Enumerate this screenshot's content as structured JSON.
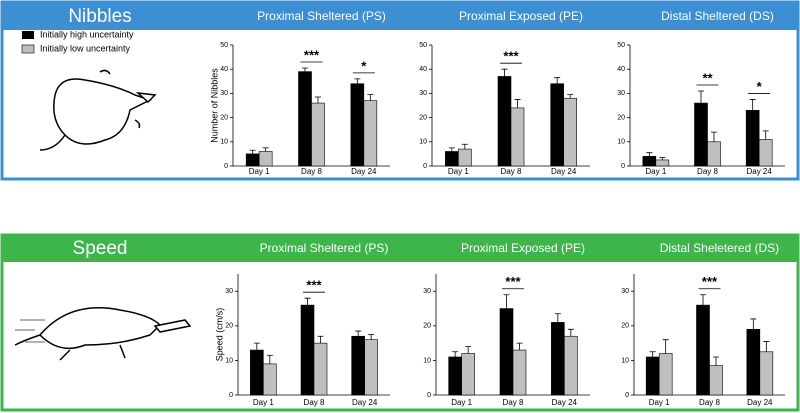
{
  "panels": [
    {
      "title": "Nibbles"
    },
    {
      "title": "Speed"
    }
  ],
  "chart_data": [
    {
      "type": "bar",
      "title": "Proximal Sheltered (PS)",
      "ylabel": "Number of Nibbles",
      "categories": [
        "Day 1",
        "Day 8",
        "Day 24"
      ],
      "series": [
        {
          "name": "Initially high uncertainty",
          "color": "#000000",
          "values": [
            5,
            39,
            34
          ],
          "errors": [
            1.5,
            1.5,
            2
          ]
        },
        {
          "name": "Initially low uncertainty",
          "color": "#bfbfbf",
          "values": [
            6,
            26,
            27
          ],
          "errors": [
            1.5,
            2.5,
            2.5
          ]
        }
      ],
      "ylim": [
        0,
        50
      ],
      "yticks": [
        0,
        10,
        20,
        30,
        40,
        50
      ],
      "annotations": [
        {
          "text": "***",
          "x": "Day 8"
        },
        {
          "text": "*",
          "x": "Day 24"
        }
      ]
    },
    {
      "type": "bar",
      "title": "Proximal Exposed (PE)",
      "categories": [
        "Day 1",
        "Day 8",
        "Day 24"
      ],
      "series": [
        {
          "color": "#000000",
          "values": [
            6,
            37,
            34
          ],
          "errors": [
            1.5,
            3,
            2.5
          ]
        },
        {
          "color": "#bfbfbf",
          "values": [
            7,
            24,
            28
          ],
          "errors": [
            2,
            3.5,
            1.5
          ]
        }
      ],
      "ylim": [
        0,
        50
      ],
      "yticks": [
        0,
        10,
        20,
        30,
        40,
        50
      ],
      "annotations": [
        {
          "text": "***",
          "x": "Day 8"
        }
      ]
    },
    {
      "type": "bar",
      "title": "Distal Sheltered (DS)",
      "categories": [
        "Day 1",
        "Day 8",
        "Day 24"
      ],
      "series": [
        {
          "color": "#000000",
          "values": [
            4,
            26,
            23
          ],
          "errors": [
            1.5,
            5,
            4.5
          ]
        },
        {
          "color": "#bfbfbf",
          "values": [
            2.5,
            10,
            11
          ],
          "errors": [
            1,
            4,
            3.5
          ]
        }
      ],
      "ylim": [
        0,
        50
      ],
      "yticks": [
        0,
        10,
        20,
        30,
        40,
        50
      ],
      "annotations": [
        {
          "text": "**",
          "x": "Day 8"
        },
        {
          "text": "*",
          "x": "Day 24"
        }
      ]
    },
    {
      "type": "bar",
      "title": "Proximal Sheltered (PS)",
      "ylabel": "Speed (cm/s)",
      "categories": [
        "Day 1",
        "Day 8",
        "Day 24"
      ],
      "series": [
        {
          "color": "#000000",
          "values": [
            13,
            26,
            17
          ],
          "errors": [
            2,
            2,
            1.5
          ]
        },
        {
          "color": "#bfbfbf",
          "values": [
            9,
            15,
            16
          ],
          "errors": [
            2.5,
            2,
            1.5
          ]
        }
      ],
      "ylim": [
        0,
        35
      ],
      "yticks": [
        0,
        10,
        20,
        30
      ],
      "annotations": [
        {
          "text": "***",
          "x": "Day 8"
        }
      ]
    },
    {
      "type": "bar",
      "title": "Proximal Exposed (PE)",
      "categories": [
        "Day 1",
        "Day 8",
        "Day 24"
      ],
      "series": [
        {
          "color": "#000000",
          "values": [
            11,
            25,
            21
          ],
          "errors": [
            1.5,
            4,
            2.5
          ]
        },
        {
          "color": "#bfbfbf",
          "values": [
            12,
            13,
            17
          ],
          "errors": [
            2,
            2,
            2
          ]
        }
      ],
      "ylim": [
        0,
        35
      ],
      "yticks": [
        0,
        10,
        20,
        30
      ],
      "annotations": [
        {
          "text": "***",
          "x": "Day 8"
        }
      ]
    },
    {
      "type": "bar",
      "title": "Distal Sheletered (DS)",
      "categories": [
        "Day 1",
        "Day 8",
        "Day 24"
      ],
      "series": [
        {
          "color": "#000000",
          "values": [
            11,
            26,
            19
          ],
          "errors": [
            1.5,
            3,
            3
          ]
        },
        {
          "color": "#bfbfbf",
          "values": [
            12,
            8.5,
            12.5
          ],
          "errors": [
            4,
            2.5,
            3
          ]
        }
      ],
      "ylim": [
        0,
        35
      ],
      "yticks": [
        0,
        10,
        20,
        30
      ],
      "annotations": [
        {
          "text": "***",
          "x": "Day 8"
        }
      ]
    }
  ]
}
